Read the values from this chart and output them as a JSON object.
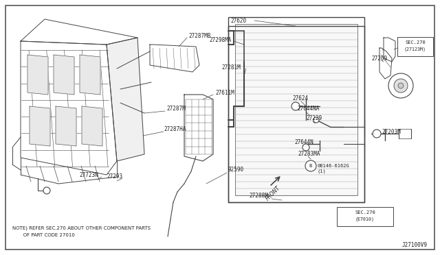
{
  "bg_color": "#ffffff",
  "border_color": "#555555",
  "line_color": "#444444",
  "text_color": "#222222",
  "fig_width": 6.4,
  "fig_height": 3.72,
  "dpi": 100,
  "note_line1": "NOTE) REFER SEC.270 ABOUT OTHER COMPONENT PARTS",
  "note_line2": "       OF PART CODE 27010",
  "front_label": "FRONT",
  "diagram_id": "J27100V9"
}
